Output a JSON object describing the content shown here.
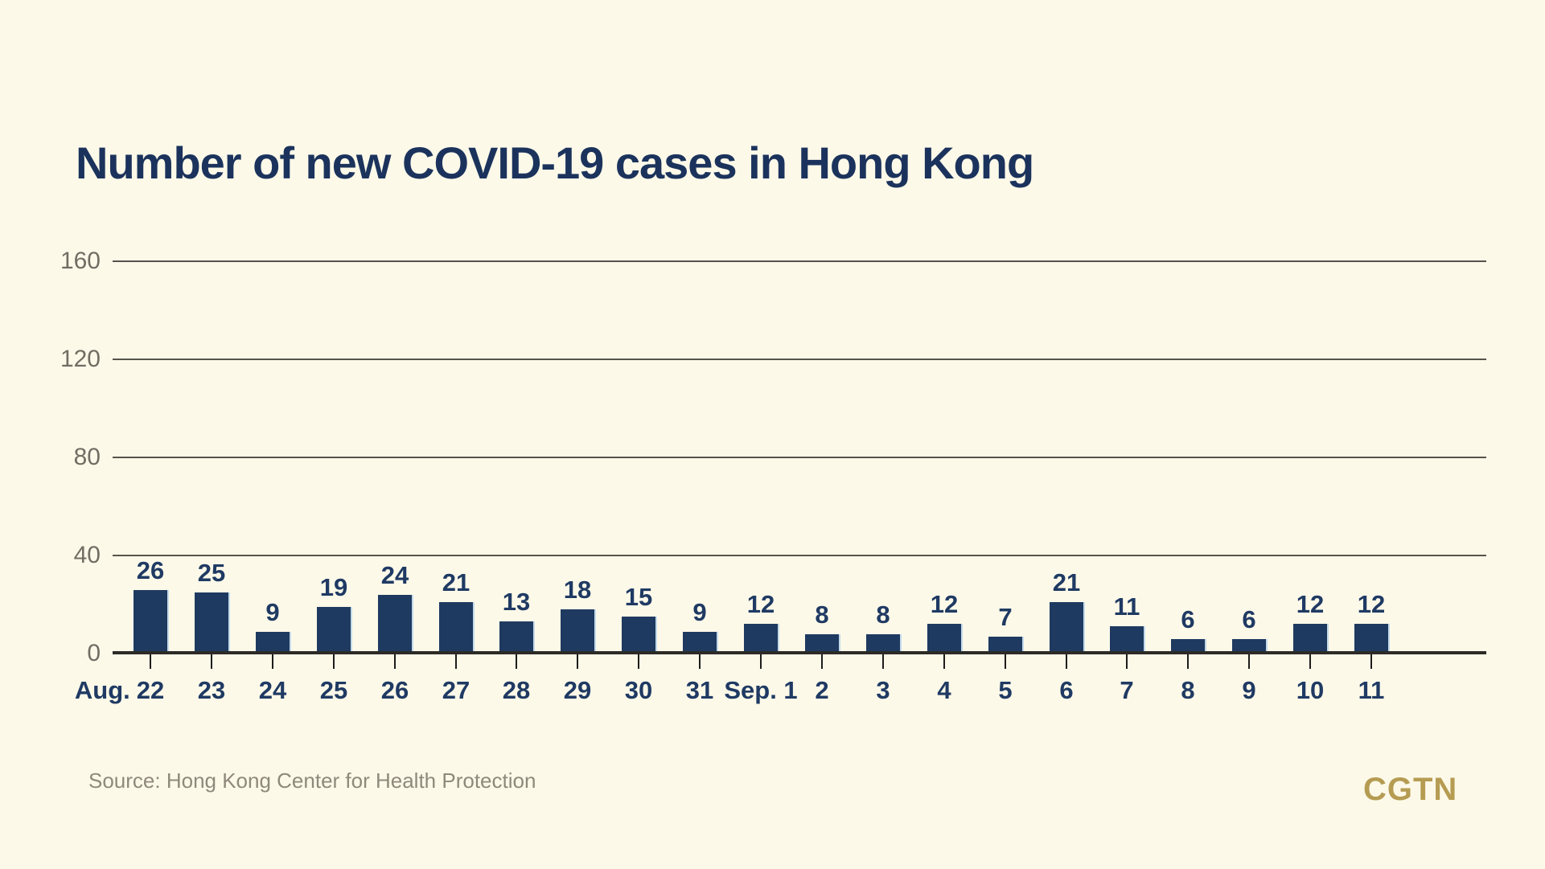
{
  "page": {
    "background_color": "#FDF9E9"
  },
  "header": {
    "title": "Number of new COVID-19 cases in Hong Kong",
    "title_color": "#1B335C"
  },
  "footer": {
    "source": "Source: Hong Kong Center for Health Protection",
    "source_color": "#8E897B",
    "brand": "CGTN",
    "brand_color": "#B59C52"
  },
  "chart_data": {
    "type": "bar",
    "title": "Number of new COVID-19 cases in Hong Kong",
    "categories": [
      "Aug. 22",
      "23",
      "24",
      "25",
      "26",
      "27",
      "28",
      "29",
      "30",
      "31",
      "Sep. 1",
      "2",
      "3",
      "4",
      "5",
      "6",
      "7",
      "8",
      "9",
      "10",
      "11"
    ],
    "values": [
      26,
      25,
      9,
      19,
      24,
      21,
      13,
      18,
      15,
      9,
      12,
      8,
      8,
      12,
      7,
      21,
      11,
      6,
      6,
      12,
      12
    ],
    "xlabel": "",
    "ylabel": "",
    "yticks": [
      0,
      40,
      80,
      120,
      160
    ],
    "ylim": [
      0,
      180
    ],
    "grid": true,
    "legend": "none",
    "value_labels_shown": true,
    "bar_color": "#1F3A60",
    "bar_edge_highlight_color": "#C3DAEA",
    "gridline_color": "#56534B",
    "axis_line_color": "#2D2B26",
    "tick_color": "#1E1D1B",
    "y_label_color": "#716D63",
    "data_label_color": "#1F3A63"
  }
}
